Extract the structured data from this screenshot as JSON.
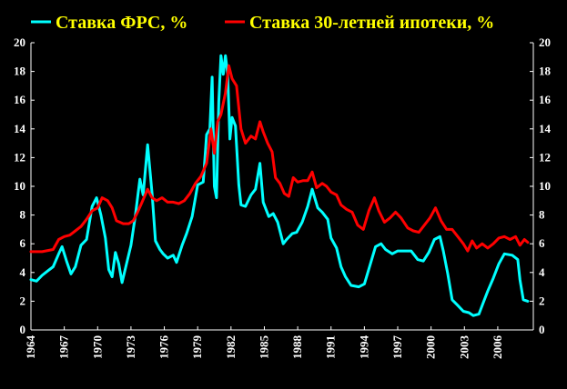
{
  "chart_data": {
    "type": "line",
    "title": "",
    "xlabel": "",
    "ylabel": "",
    "xlim": [
      1964,
      2009.2
    ],
    "ylim": [
      0,
      20
    ],
    "y_ticks": [
      "0",
      "2",
      "4",
      "6",
      "8",
      "10",
      "12",
      "14",
      "16",
      "18",
      "20"
    ],
    "x_ticks": [
      "1964",
      "1967",
      "1970",
      "1973",
      "1976",
      "1979",
      "1982",
      "1985",
      "1988",
      "1991",
      "1994",
      "1997",
      "2000",
      "2003",
      "2006"
    ],
    "grid": false,
    "legend_position": "top",
    "background_color": "#000000",
    "axis_color": "#ffffff",
    "text_color": "#ffffff",
    "legend_text_color": "#ffff00",
    "series": [
      {
        "name": "Ставка ФРС, %",
        "color": "#00ffff",
        "points": [
          [
            1964.0,
            3.5
          ],
          [
            1964.5,
            3.4
          ],
          [
            1965.0,
            3.8
          ],
          [
            1965.5,
            4.1
          ],
          [
            1966.0,
            4.4
          ],
          [
            1966.5,
            5.3
          ],
          [
            1966.8,
            5.8
          ],
          [
            1967.2,
            4.8
          ],
          [
            1967.6,
            3.9
          ],
          [
            1968.0,
            4.4
          ],
          [
            1968.5,
            5.9
          ],
          [
            1969.0,
            6.3
          ],
          [
            1969.5,
            8.6
          ],
          [
            1969.9,
            9.2
          ],
          [
            1970.3,
            8.0
          ],
          [
            1970.7,
            6.4
          ],
          [
            1971.0,
            4.2
          ],
          [
            1971.3,
            3.7
          ],
          [
            1971.6,
            5.4
          ],
          [
            1971.9,
            4.6
          ],
          [
            1972.2,
            3.3
          ],
          [
            1972.6,
            4.6
          ],
          [
            1973.0,
            5.9
          ],
          [
            1973.4,
            8.0
          ],
          [
            1973.8,
            10.5
          ],
          [
            1974.1,
            9.4
          ],
          [
            1974.5,
            12.9
          ],
          [
            1974.9,
            9.5
          ],
          [
            1975.2,
            6.2
          ],
          [
            1975.6,
            5.6
          ],
          [
            1975.9,
            5.3
          ],
          [
            1976.3,
            5.0
          ],
          [
            1976.8,
            5.2
          ],
          [
            1977.1,
            4.7
          ],
          [
            1977.6,
            5.9
          ],
          [
            1978.0,
            6.7
          ],
          [
            1978.5,
            7.9
          ],
          [
            1979.0,
            10.1
          ],
          [
            1979.5,
            10.3
          ],
          [
            1979.8,
            13.6
          ],
          [
            1980.1,
            14.0
          ],
          [
            1980.3,
            17.6
          ],
          [
            1980.5,
            10.0
          ],
          [
            1980.7,
            9.2
          ],
          [
            1980.9,
            15.9
          ],
          [
            1981.1,
            19.1
          ],
          [
            1981.3,
            17.8
          ],
          [
            1981.5,
            19.1
          ],
          [
            1981.7,
            17.8
          ],
          [
            1981.9,
            13.3
          ],
          [
            1982.1,
            14.8
          ],
          [
            1982.4,
            14.2
          ],
          [
            1982.7,
            10.1
          ],
          [
            1982.9,
            8.7
          ],
          [
            1983.3,
            8.6
          ],
          [
            1983.8,
            9.4
          ],
          [
            1984.2,
            9.8
          ],
          [
            1984.6,
            11.6
          ],
          [
            1984.9,
            8.9
          ],
          [
            1985.4,
            7.9
          ],
          [
            1985.8,
            8.1
          ],
          [
            1986.2,
            7.5
          ],
          [
            1986.7,
            6.0
          ],
          [
            1987.0,
            6.3
          ],
          [
            1987.5,
            6.7
          ],
          [
            1987.9,
            6.8
          ],
          [
            1988.4,
            7.5
          ],
          [
            1988.9,
            8.6
          ],
          [
            1989.3,
            9.8
          ],
          [
            1989.8,
            8.5
          ],
          [
            1990.2,
            8.2
          ],
          [
            1990.7,
            7.7
          ],
          [
            1991.0,
            6.4
          ],
          [
            1991.5,
            5.7
          ],
          [
            1991.9,
            4.4
          ],
          [
            1992.3,
            3.7
          ],
          [
            1992.8,
            3.1
          ],
          [
            1993.5,
            3.0
          ],
          [
            1994.0,
            3.2
          ],
          [
            1994.5,
            4.5
          ],
          [
            1995.0,
            5.8
          ],
          [
            1995.5,
            6.0
          ],
          [
            1995.9,
            5.6
          ],
          [
            1996.5,
            5.3
          ],
          [
            1997.0,
            5.5
          ],
          [
            1997.6,
            5.5
          ],
          [
            1998.2,
            5.5
          ],
          [
            1998.8,
            4.9
          ],
          [
            1999.3,
            4.8
          ],
          [
            1999.8,
            5.4
          ],
          [
            2000.3,
            6.3
          ],
          [
            2000.8,
            6.5
          ],
          [
            2001.1,
            5.5
          ],
          [
            2001.5,
            3.9
          ],
          [
            2001.9,
            2.1
          ],
          [
            2002.4,
            1.7
          ],
          [
            2002.9,
            1.3
          ],
          [
            2003.4,
            1.2
          ],
          [
            2003.8,
            1.0
          ],
          [
            2004.3,
            1.1
          ],
          [
            2004.7,
            1.9
          ],
          [
            2005.1,
            2.7
          ],
          [
            2005.6,
            3.6
          ],
          [
            2006.1,
            4.6
          ],
          [
            2006.6,
            5.3
          ],
          [
            2007.3,
            5.2
          ],
          [
            2007.8,
            4.9
          ],
          [
            2008.0,
            3.5
          ],
          [
            2008.3,
            2.1
          ],
          [
            2008.7,
            2.0
          ]
        ]
      },
      {
        "name": "Ставка 30-летней ипотеки, %",
        "color": "#ff0000",
        "points": [
          [
            1964.0,
            5.45
          ],
          [
            1965.0,
            5.45
          ],
          [
            1966.0,
            5.6
          ],
          [
            1966.5,
            6.3
          ],
          [
            1967.0,
            6.5
          ],
          [
            1967.5,
            6.6
          ],
          [
            1968.0,
            6.9
          ],
          [
            1968.5,
            7.2
          ],
          [
            1969.0,
            7.7
          ],
          [
            1969.5,
            8.3
          ],
          [
            1970.0,
            8.5
          ],
          [
            1970.4,
            9.2
          ],
          [
            1970.9,
            9.0
          ],
          [
            1971.3,
            8.5
          ],
          [
            1971.7,
            7.6
          ],
          [
            1972.3,
            7.4
          ],
          [
            1972.8,
            7.4
          ],
          [
            1973.2,
            7.6
          ],
          [
            1973.6,
            8.2
          ],
          [
            1974.0,
            8.9
          ],
          [
            1974.5,
            9.8
          ],
          [
            1974.9,
            9.2
          ],
          [
            1975.3,
            9.0
          ],
          [
            1975.8,
            9.2
          ],
          [
            1976.3,
            8.9
          ],
          [
            1976.8,
            8.9
          ],
          [
            1977.3,
            8.8
          ],
          [
            1977.8,
            9.0
          ],
          [
            1978.3,
            9.5
          ],
          [
            1978.8,
            10.2
          ],
          [
            1979.3,
            10.7
          ],
          [
            1979.8,
            11.6
          ],
          [
            1980.2,
            14.0
          ],
          [
            1980.5,
            12.3
          ],
          [
            1980.8,
            14.5
          ],
          [
            1981.1,
            15.0
          ],
          [
            1981.5,
            16.5
          ],
          [
            1981.8,
            18.4
          ],
          [
            1982.1,
            17.5
          ],
          [
            1982.5,
            17.0
          ],
          [
            1982.9,
            14.0
          ],
          [
            1983.3,
            13.0
          ],
          [
            1983.8,
            13.5
          ],
          [
            1984.2,
            13.3
          ],
          [
            1984.6,
            14.5
          ],
          [
            1984.9,
            13.8
          ],
          [
            1985.3,
            13.0
          ],
          [
            1985.7,
            12.4
          ],
          [
            1986.0,
            10.6
          ],
          [
            1986.4,
            10.2
          ],
          [
            1986.8,
            9.5
          ],
          [
            1987.2,
            9.3
          ],
          [
            1987.6,
            10.6
          ],
          [
            1988.0,
            10.3
          ],
          [
            1988.5,
            10.4
          ],
          [
            1988.9,
            10.4
          ],
          [
            1989.3,
            11.0
          ],
          [
            1989.7,
            9.9
          ],
          [
            1990.2,
            10.2
          ],
          [
            1990.6,
            10.0
          ],
          [
            1991.0,
            9.6
          ],
          [
            1991.5,
            9.4
          ],
          [
            1991.9,
            8.7
          ],
          [
            1992.4,
            8.4
          ],
          [
            1992.9,
            8.2
          ],
          [
            1993.4,
            7.3
          ],
          [
            1993.9,
            7.0
          ],
          [
            1994.4,
            8.3
          ],
          [
            1994.9,
            9.2
          ],
          [
            1995.3,
            8.3
          ],
          [
            1995.8,
            7.5
          ],
          [
            1996.3,
            7.8
          ],
          [
            1996.8,
            8.2
          ],
          [
            1997.3,
            7.8
          ],
          [
            1997.9,
            7.1
          ],
          [
            1998.4,
            6.9
          ],
          [
            1998.9,
            6.8
          ],
          [
            1999.4,
            7.3
          ],
          [
            1999.9,
            7.8
          ],
          [
            2000.4,
            8.5
          ],
          [
            2000.9,
            7.6
          ],
          [
            2001.4,
            7.0
          ],
          [
            2001.9,
            7.0
          ],
          [
            2002.4,
            6.5
          ],
          [
            2002.9,
            6.0
          ],
          [
            2003.3,
            5.5
          ],
          [
            2003.7,
            6.2
          ],
          [
            2004.1,
            5.7
          ],
          [
            2004.6,
            6.0
          ],
          [
            2005.1,
            5.7
          ],
          [
            2005.6,
            6.0
          ],
          [
            2006.1,
            6.4
          ],
          [
            2006.6,
            6.5
          ],
          [
            2007.1,
            6.3
          ],
          [
            2007.6,
            6.5
          ],
          [
            2008.0,
            5.9
          ],
          [
            2008.4,
            6.3
          ],
          [
            2008.7,
            6.1
          ]
        ]
      }
    ]
  }
}
